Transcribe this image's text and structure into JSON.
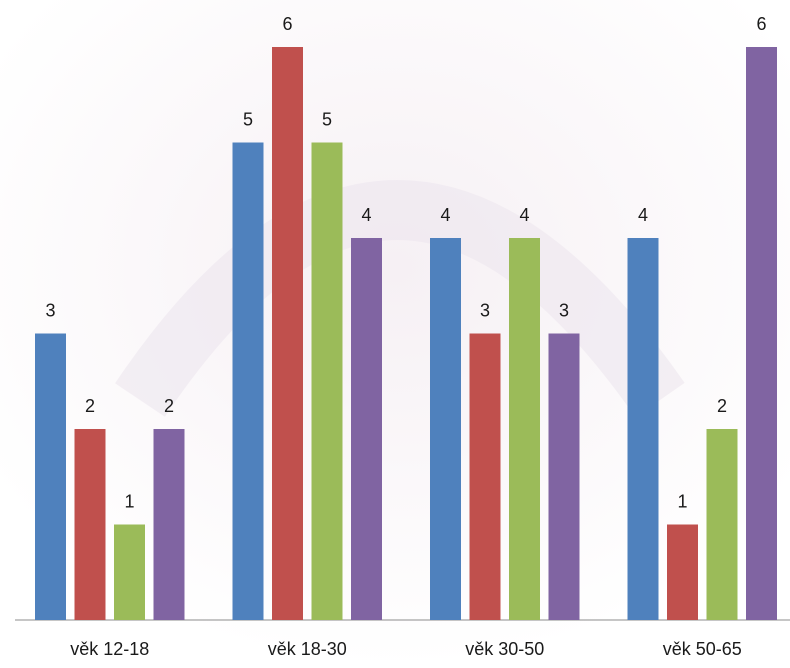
{
  "chart_data": {
    "type": "bar",
    "categories": [
      "věk 12-18",
      "věk 18-30",
      "věk 30-50",
      "věk 50-65"
    ],
    "series": [
      {
        "color": "#4f81bd",
        "values": [
          3,
          5,
          4,
          4
        ]
      },
      {
        "color": "#c0504d",
        "values": [
          2,
          6,
          3,
          1
        ]
      },
      {
        "color": "#9bbb59",
        "values": [
          1,
          5,
          4,
          2
        ]
      },
      {
        "color": "#8064a2",
        "values": [
          2,
          4,
          3,
          6
        ]
      }
    ],
    "ylim": [
      0,
      6
    ]
  }
}
